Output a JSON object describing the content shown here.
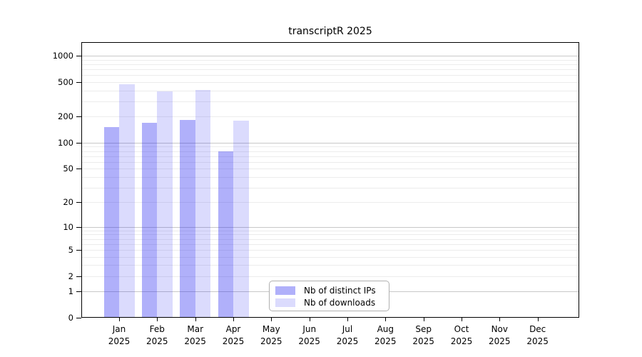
{
  "chart_data": {
    "type": "bar",
    "title": "transcriptR 2025",
    "scale": "log1p",
    "months": [
      "Jan",
      "Feb",
      "Mar",
      "Apr",
      "May",
      "Jun",
      "Jul",
      "Aug",
      "Sep",
      "Oct",
      "Nov",
      "Dec"
    ],
    "year": "2025",
    "y_ticks": [
      0,
      1,
      2,
      5,
      10,
      20,
      50,
      100,
      200,
      500,
      1000
    ],
    "ylim": [
      0,
      1430
    ],
    "grid": "on",
    "legend_position": "bottom-center",
    "series": [
      {
        "name": "Nb of distinct IPs",
        "key": "distinct-ips",
        "color": "rgba(30,30,240,0.35)",
        "values": [
          152,
          171,
          182,
          80,
          null,
          null,
          null,
          null,
          null,
          null,
          null,
          null
        ]
      },
      {
        "name": "Nb of downloads",
        "key": "downloads",
        "color": "rgba(30,30,240,0.16)",
        "values": [
          472,
          390,
          408,
          181,
          null,
          null,
          null,
          null,
          null,
          null,
          null,
          null
        ]
      }
    ],
    "colors": {
      "grid_major": "#c8c8c8",
      "grid_minor": "#ececec",
      "axis": "#000000",
      "text": "#000000",
      "legend_border": "#b0b0b0",
      "background": "#ffffff"
    }
  }
}
